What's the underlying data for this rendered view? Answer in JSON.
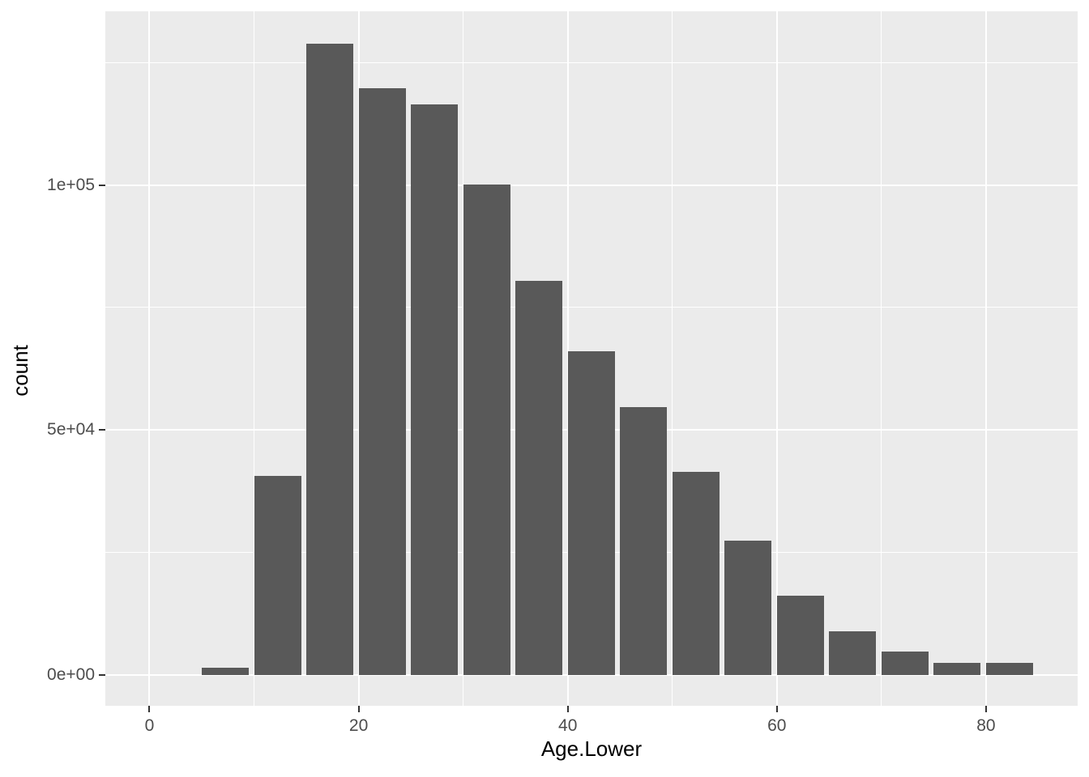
{
  "figure": {
    "x_axis_title": "Age.Lower",
    "y_axis_title": "count"
  },
  "chart_data": {
    "type": "bar",
    "title": "",
    "xlabel": "Age.Lower",
    "ylabel": "count",
    "description": "ggplot2-style histogram of Age.Lower, bin width 5, bars span [age, age+4.5] with small gaps",
    "bin_width": 5,
    "bar_width_units": 4.5,
    "categories": [
      5,
      10,
      15,
      20,
      25,
      30,
      35,
      40,
      45,
      50,
      55,
      60,
      65,
      70,
      75,
      80
    ],
    "values": [
      1600,
      40600,
      128800,
      119800,
      116400,
      100100,
      80500,
      66100,
      54700,
      41500,
      27400,
      16300,
      9000,
      4900,
      2600,
      2600
    ],
    "x_ticks": {
      "values": [
        0,
        20,
        40,
        60,
        80
      ],
      "labels": [
        "0",
        "20",
        "40",
        "60",
        "80"
      ]
    },
    "x_minor_ticks": [
      10,
      30,
      50,
      70
    ],
    "y_ticks": {
      "values": [
        0,
        50000,
        100000
      ],
      "labels": [
        "0e+00",
        "5e+04",
        "1e+05"
      ]
    },
    "y_minor_ticks": [
      25000,
      75000,
      125000
    ],
    "xlim": [
      -4.22,
      88.76
    ],
    "ylim": [
      -6200,
      135400
    ],
    "grid": true,
    "legend_position": "none",
    "colors": {
      "bar_fill": "#595959",
      "panel_background": "#EBEBEB",
      "grid_major": "#FFFFFF",
      "grid_minor": "#FFFFFF",
      "tick_mark": "#333333",
      "tick_label": "#4D4D4D",
      "axis_title": "#000000",
      "figure_background": "#FFFFFF"
    }
  }
}
